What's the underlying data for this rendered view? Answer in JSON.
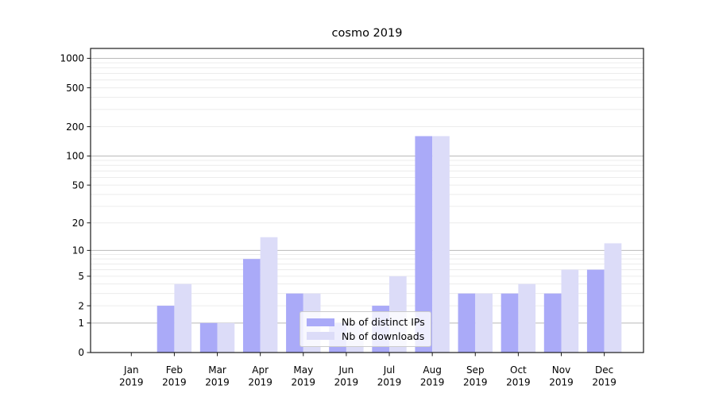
{
  "figure": {
    "title": "cosmo 2019"
  },
  "legend": {
    "items": [
      {
        "label": "Nb of distinct IPs",
        "color": "#aaaaf8"
      },
      {
        "label": "Nb of downloads",
        "color": "#dcdcf8"
      }
    ]
  },
  "chart_data": {
    "type": "bar",
    "title": "cosmo 2019",
    "categories": [
      "Jan 2019",
      "Feb 2019",
      "Mar 2019",
      "Apr 2019",
      "May 2019",
      "Jun 2019",
      "Jul 2019",
      "Aug 2019",
      "Sep 2019",
      "Oct 2019",
      "Nov 2019",
      "Dec 2019"
    ],
    "series": [
      {
        "name": "Nb of distinct IPs",
        "color": "#aaaaf8",
        "values": [
          0,
          2,
          1,
          8,
          3,
          1,
          2,
          160,
          3,
          3,
          3,
          6
        ]
      },
      {
        "name": "Nb of downloads",
        "color": "#dcdcf8",
        "values": [
          0,
          4,
          1,
          14,
          3,
          1,
          5,
          160,
          3,
          4,
          6,
          12
        ]
      }
    ],
    "yscale": "log1p",
    "yticks": [
      0,
      1,
      2,
      5,
      10,
      20,
      50,
      100,
      200,
      500,
      1000
    ],
    "ylim": [
      0,
      1260
    ],
    "grid": true,
    "legend_position": "lower center",
    "grid_major_color": "#b9b9b9",
    "grid_minor_color": "#ececec",
    "frame_color": "#1a1a1a"
  }
}
